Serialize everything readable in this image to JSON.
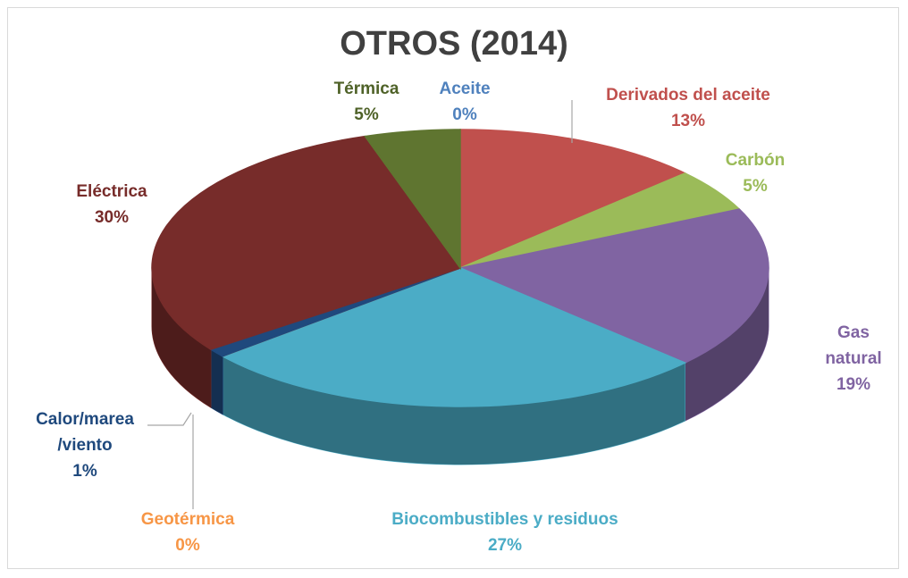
{
  "chart_data": {
    "type": "pie3d",
    "title": "OTROS (2014)",
    "categories": [
      "Aceite",
      "Derivados del aceite",
      "Carbón",
      "Gas natural",
      "Biocombustibles y residuos",
      "Geotérmica",
      "Calor/marea\n/viento",
      "Eléctrica",
      "Térmica"
    ],
    "values": [
      0,
      13,
      5,
      19,
      27,
      0,
      1,
      30,
      5
    ],
    "value_labels": [
      "0%",
      "13%",
      "5%",
      "19%",
      "27%",
      "0%",
      "1%",
      "30%",
      "5%"
    ],
    "colors": [
      "#4f81bd",
      "#c0504d",
      "#9bbb59",
      "#8064a2",
      "#4bacc6",
      "#f79646",
      "#1f497d",
      "#772c2a",
      "#5f7530"
    ]
  }
}
